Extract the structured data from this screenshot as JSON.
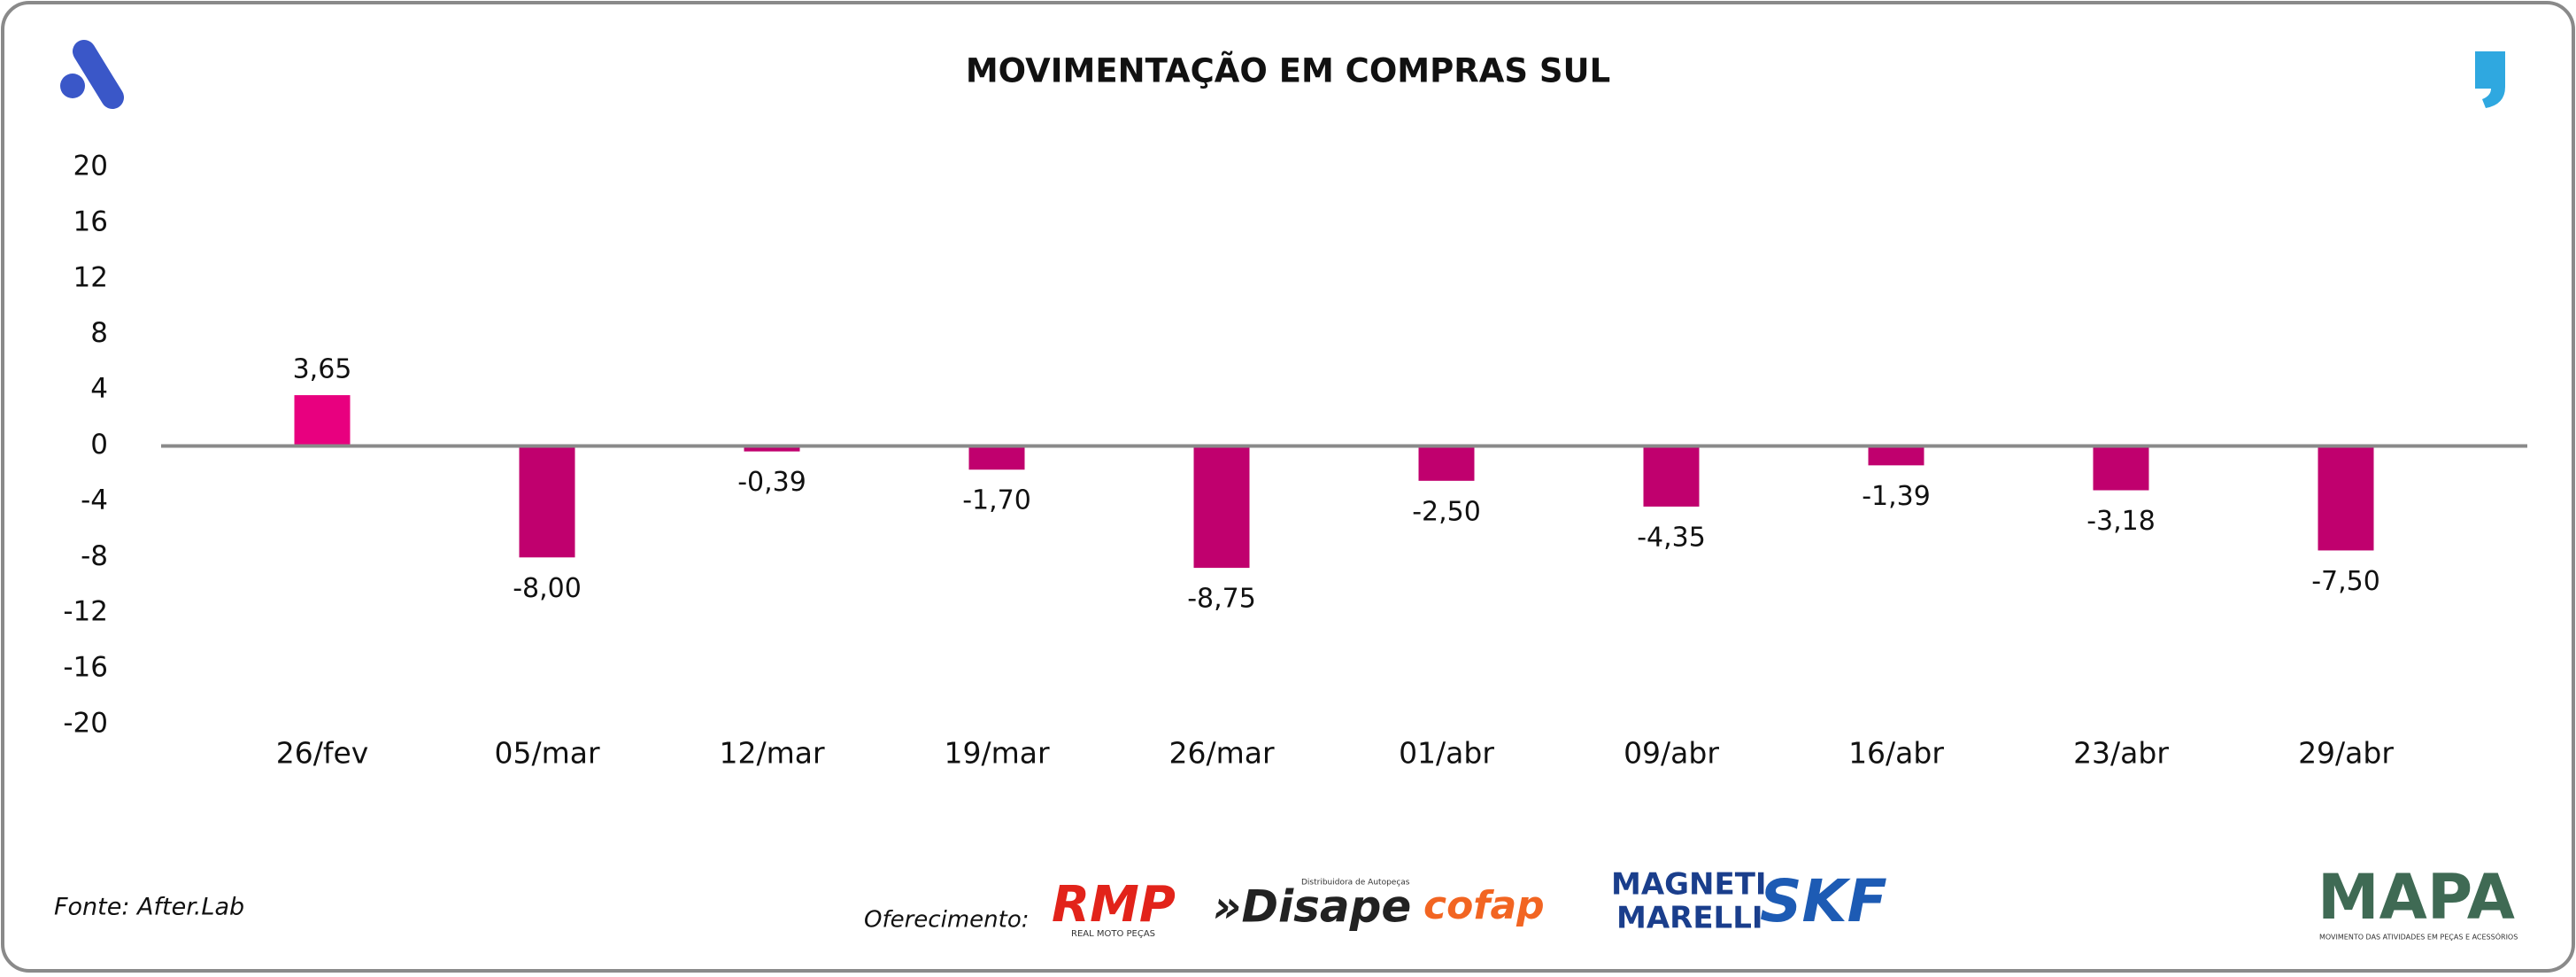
{
  "chart_data": {
    "type": "bar",
    "title": "MOVIMENTAÇÃO EM COMPRAS SUL",
    "categories": [
      "26/fev",
      "05/mar",
      "12/mar",
      "19/mar",
      "26/mar",
      "01/abr",
      "09/abr",
      "16/abr",
      "23/abr",
      "29/abr"
    ],
    "values": [
      3.65,
      -8.0,
      -0.39,
      -1.7,
      -8.75,
      -2.5,
      -4.35,
      -1.39,
      -3.18,
      -7.5
    ],
    "value_labels": [
      "3,65",
      "-8,00",
      "-0,39",
      "-1,70",
      "-8,75",
      "-2,50",
      "-4,35",
      "-1,39",
      "-3,18",
      "-7,50"
    ],
    "colors": [
      "#e8007f",
      "#c0006e",
      "#c0006e",
      "#c0006e",
      "#c0006e",
      "#c0006e",
      "#c0006e",
      "#c0006e",
      "#c0006e",
      "#c0006e"
    ],
    "ylim": [
      -20,
      20
    ],
    "yticks": [
      -20,
      -16,
      -12,
      -8,
      -4,
      0,
      4,
      8,
      12,
      16,
      20
    ],
    "grid": false
  },
  "footer": {
    "source": "Fonte: After.Lab",
    "sponsor_label": "Oferecimento:",
    "sponsors": [
      "RMP",
      "REAL MOTO PEÇAS",
      "»Disape",
      "Distribuidora de Autopeças",
      "cofap",
      "MAGNETI",
      "MARELLI",
      "SKF",
      "MAPA",
      "MOVIMENTO DAS ATIVIDADES EM PEÇAS E ACESSÓRIOS"
    ]
  }
}
